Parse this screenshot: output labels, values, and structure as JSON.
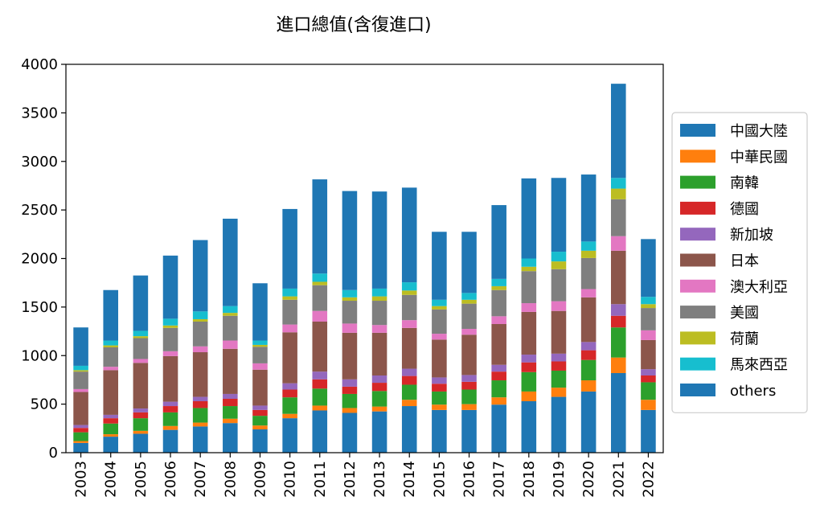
{
  "chart_data": {
    "type": "bar",
    "stacked": true,
    "title": "進口總值(含復進口)",
    "xlabel": "",
    "ylabel": "",
    "ylim": [
      0,
      4000
    ],
    "yticks": [
      0,
      500,
      1000,
      1500,
      2000,
      2500,
      3000,
      3500,
      4000
    ],
    "grid": false,
    "legend_position": "right",
    "categories": [
      "2003",
      "2004",
      "2005",
      "2006",
      "2007",
      "2008",
      "2009",
      "2010",
      "2011",
      "2012",
      "2013",
      "2014",
      "2015",
      "2016",
      "2017",
      "2018",
      "2019",
      "2020",
      "2021",
      "2022"
    ],
    "series": [
      {
        "name": "中國大陸",
        "color": "#1f77b4",
        "values": [
          100,
          165,
          195,
          235,
          270,
          305,
          240,
          355,
          435,
          410,
          425,
          480,
          440,
          440,
          495,
          530,
          575,
          630,
          820,
          440
        ]
      },
      {
        "name": "中華民國",
        "color": "#ff7f0e",
        "values": [
          20,
          25,
          30,
          40,
          40,
          45,
          40,
          45,
          50,
          50,
          50,
          65,
          55,
          60,
          75,
          100,
          95,
          115,
          160,
          105
        ]
      },
      {
        "name": "南韓",
        "color": "#2ca02c",
        "values": [
          90,
          110,
          130,
          140,
          150,
          130,
          100,
          170,
          175,
          145,
          160,
          155,
          135,
          150,
          175,
          200,
          175,
          210,
          310,
          180
        ]
      },
      {
        "name": "德國",
        "color": "#d62728",
        "values": [
          45,
          55,
          60,
          65,
          70,
          75,
          60,
          80,
          95,
          75,
          85,
          90,
          80,
          80,
          90,
          100,
          95,
          100,
          120,
          70
        ]
      },
      {
        "name": "新加坡",
        "color": "#9467bd",
        "values": [
          30,
          35,
          40,
          45,
          45,
          50,
          45,
          65,
          80,
          75,
          75,
          75,
          65,
          70,
          70,
          80,
          80,
          85,
          120,
          65
        ]
      },
      {
        "name": "日本",
        "color": "#8c564b",
        "values": [
          340,
          460,
          470,
          470,
          460,
          465,
          370,
          525,
          515,
          480,
          440,
          420,
          390,
          415,
          420,
          440,
          440,
          460,
          550,
          300
        ]
      },
      {
        "name": "澳大利亞",
        "color": "#e377c2",
        "values": [
          30,
          35,
          40,
          50,
          60,
          85,
          65,
          80,
          110,
          95,
          80,
          80,
          60,
          60,
          80,
          90,
          100,
          85,
          150,
          100
        ]
      },
      {
        "name": "美國",
        "color": "#7f7f7f",
        "values": [
          180,
          200,
          215,
          240,
          255,
          255,
          170,
          255,
          265,
          235,
          250,
          260,
          250,
          260,
          270,
          330,
          330,
          320,
          380,
          230
        ]
      },
      {
        "name": "荷蘭",
        "color": "#bcbd22",
        "values": [
          15,
          20,
          20,
          25,
          25,
          30,
          20,
          35,
          35,
          35,
          45,
          45,
          35,
          40,
          40,
          45,
          80,
          75,
          110,
          40
        ]
      },
      {
        "name": "馬來西亞",
        "color": "#17becf",
        "values": [
          45,
          50,
          55,
          70,
          80,
          70,
          45,
          80,
          85,
          75,
          80,
          85,
          65,
          70,
          75,
          85,
          100,
          95,
          110,
          75
        ]
      },
      {
        "name": "others",
        "color": "#1f77b4",
        "values": [
          395,
          520,
          570,
          650,
          735,
          900,
          590,
          820,
          970,
          1020,
          1000,
          975,
          700,
          630,
          760,
          825,
          760,
          690,
          970,
          595
        ]
      }
    ]
  }
}
